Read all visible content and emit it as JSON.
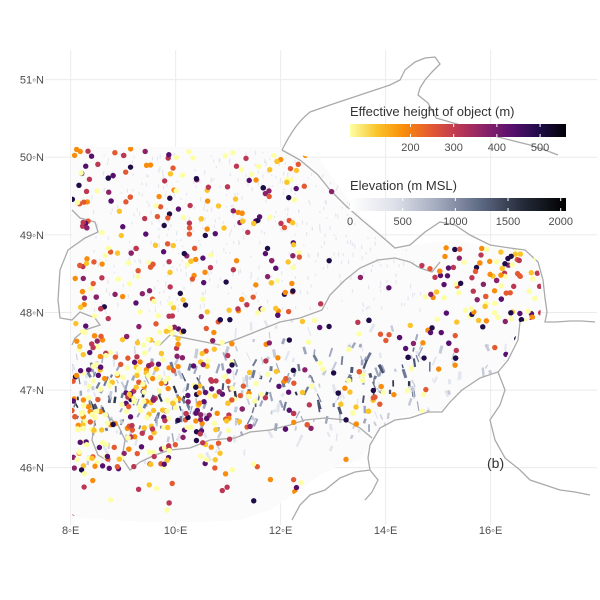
{
  "chart_data": {
    "type": "map-scatter",
    "panel_tag": "(b)",
    "x_ticks": [
      {
        "value": 8,
        "label": "8◦E"
      },
      {
        "value": 10,
        "label": "10◦E"
      },
      {
        "value": 12,
        "label": "12◦E"
      },
      {
        "value": 14,
        "label": "14◦E"
      },
      {
        "value": 16,
        "label": "16◦E"
      }
    ],
    "y_ticks": [
      {
        "value": 46,
        "label": "46◦N"
      },
      {
        "value": 47,
        "label": "47◦N"
      },
      {
        "value": 48,
        "label": "48◦N"
      },
      {
        "value": 49,
        "label": "49◦N"
      },
      {
        "value": 50,
        "label": "50◦N"
      },
      {
        "value": 51,
        "label": "51◦N"
      }
    ],
    "xlim": [
      7.95,
      17.95
    ],
    "ylim": [
      45.3,
      51.15
    ],
    "grid": true,
    "legends": [
      {
        "title": "Effective height of object (m)",
        "scale": "inferno-reversed",
        "range": [
          60,
          560
        ],
        "ticks": [
          {
            "value": 200,
            "label": "200"
          },
          {
            "value": 300,
            "label": "300"
          },
          {
            "value": 400,
            "label": "400"
          },
          {
            "value": 500,
            "label": "500"
          }
        ],
        "colors": [
          "#fcffa4",
          "#fac42a",
          "#f98c0a",
          "#e35932",
          "#bc3754",
          "#892269",
          "#57106e",
          "#1f0c48",
          "#000004"
        ]
      },
      {
        "title": "Elevation (m MSL)",
        "scale": "grey-blue",
        "range": [
          0,
          2050
        ],
        "ticks": [
          {
            "value": 0,
            "label": "0"
          },
          {
            "value": 500,
            "label": "500"
          },
          {
            "value": 1000,
            "label": "1000"
          },
          {
            "value": 1500,
            "label": "1500"
          },
          {
            "value": 2000,
            "label": "2000"
          }
        ],
        "colors": [
          "#ffffff",
          "#dfe2ea",
          "#a4acbf",
          "#5f6a85",
          "#252b3a",
          "#000000"
        ]
      }
    ],
    "border_color": "#aaaaaa",
    "grid_color": "#ebebeb"
  }
}
